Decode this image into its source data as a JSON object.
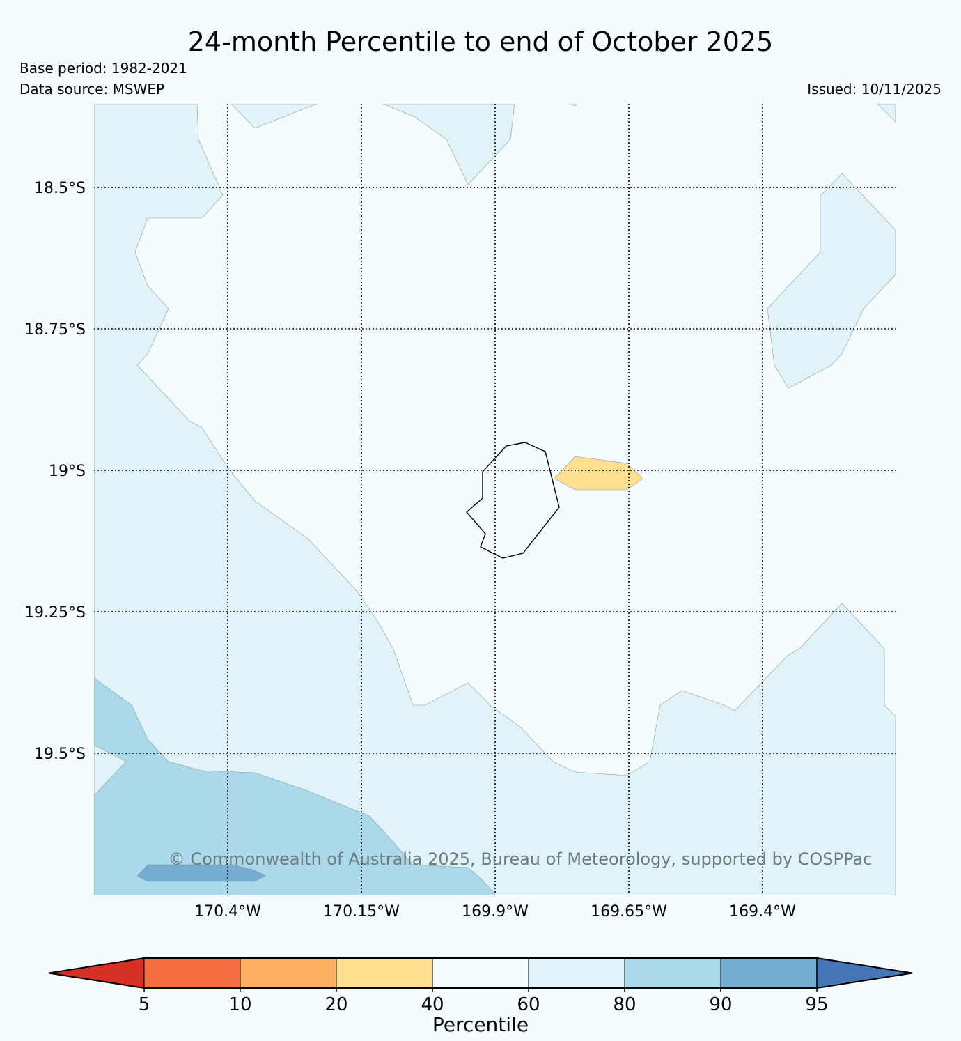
{
  "title": "24-month Percentile to end of October 2025",
  "base_period": "Base period: 1982-2021",
  "data_source": "Data source: MSWEP",
  "issued": "Issued: 10/11/2025",
  "copyright": "© Commonwealth of Australia 2025, Bureau of Meteorology, supported by COSPPac",
  "map": {
    "lat_labels": [
      "18.5°S",
      "18.75°S",
      "19°S",
      "19.25°S",
      "19.5°S"
    ],
    "lon_labels": [
      "170.4°W",
      "170.15°W",
      "169.9°W",
      "169.65°W",
      "169.4°W"
    ],
    "lat_values": [
      -18.5,
      -18.75,
      -19.0,
      -19.25,
      -19.5
    ],
    "lon_values": [
      -170.4,
      -170.15,
      -169.9,
      -169.65,
      -169.4
    ],
    "gridlines": "dotted"
  },
  "colorbar": {
    "title": "Percentile",
    "ticks": [
      "5",
      "10",
      "20",
      "40",
      "60",
      "80",
      "90",
      "95"
    ],
    "colors": [
      "#d73027",
      "#f46d43",
      "#fdae61",
      "#fee090",
      "#f5fcfd",
      "#e0f3f8",
      "#abd9e9",
      "#74add1",
      "#4575b4"
    ]
  },
  "legend_colors": {
    "percentile_20_40": "#fee090",
    "percentile_60_80": "#e0f3f8",
    "percentile_80_90": "#abd9e9",
    "percentile_90_95": "#74add1"
  }
}
